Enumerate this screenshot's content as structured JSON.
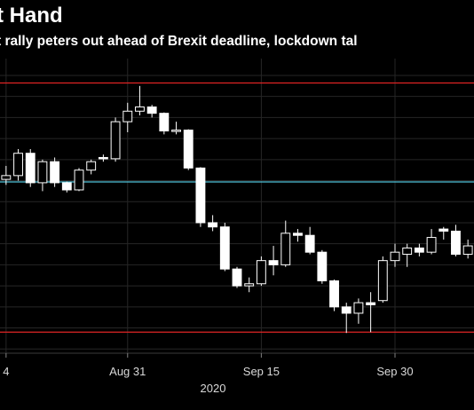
{
  "chart_data": {
    "type": "candlestick",
    "title": "t Hand",
    "subtitle": "t rally peters out ahead of Brexit deadline, lockdown tal",
    "x_tick_labels": [
      "4",
      "Aug 31",
      "Sep 15",
      "Sep 30"
    ],
    "x_tick_sessions": [
      0,
      10,
      21,
      32
    ],
    "year_label": "2020",
    "xlim": [
      -0.5,
      38.5
    ],
    "ylim": [
      1.284,
      1.354
    ],
    "grid": true,
    "horizontal_lines": [
      {
        "value": 1.3482,
        "color": "#e02424"
      },
      {
        "value": 1.3247,
        "color": "#4fc3d9"
      },
      {
        "value": 1.289,
        "color": "#e02424"
      }
    ],
    "candles": [
      {
        "o": 1.3253,
        "h": 1.3285,
        "l": 1.324,
        "c": 1.3262
      },
      {
        "o": 1.3262,
        "h": 1.3325,
        "l": 1.325,
        "c": 1.3315
      },
      {
        "o": 1.3315,
        "h": 1.3325,
        "l": 1.3235,
        "c": 1.3245
      },
      {
        "o": 1.3245,
        "h": 1.33,
        "l": 1.3225,
        "c": 1.3295
      },
      {
        "o": 1.3295,
        "h": 1.3305,
        "l": 1.3235,
        "c": 1.3245
      },
      {
        "o": 1.3245,
        "h": 1.3248,
        "l": 1.3222,
        "c": 1.3228
      },
      {
        "o": 1.3228,
        "h": 1.328,
        "l": 1.3225,
        "c": 1.3275
      },
      {
        "o": 1.3275,
        "h": 1.33,
        "l": 1.3265,
        "c": 1.3295
      },
      {
        "o": 1.3305,
        "h": 1.3312,
        "l": 1.3295,
        "c": 1.3302
      },
      {
        "o": 1.3302,
        "h": 1.34,
        "l": 1.3295,
        "c": 1.339
      },
      {
        "o": 1.339,
        "h": 1.3435,
        "l": 1.3365,
        "c": 1.3415
      },
      {
        "o": 1.3415,
        "h": 1.3475,
        "l": 1.3405,
        "c": 1.3425
      },
      {
        "o": 1.3425,
        "h": 1.343,
        "l": 1.34,
        "c": 1.341
      },
      {
        "o": 1.341,
        "h": 1.3412,
        "l": 1.336,
        "c": 1.3368
      },
      {
        "o": 1.3368,
        "h": 1.339,
        "l": 1.336,
        "c": 1.337
      },
      {
        "o": 1.337,
        "h": 1.3372,
        "l": 1.3275,
        "c": 1.328
      },
      {
        "o": 1.328,
        "h": 1.3282,
        "l": 1.314,
        "c": 1.315
      },
      {
        "o": 1.315,
        "h": 1.3168,
        "l": 1.313,
        "c": 1.314
      },
      {
        "o": 1.314,
        "h": 1.315,
        "l": 1.3035,
        "c": 1.304
      },
      {
        "o": 1.304,
        "h": 1.3045,
        "l": 1.2995,
        "c": 1.3
      },
      {
        "o": 1.3,
        "h": 1.302,
        "l": 1.2985,
        "c": 1.3005
      },
      {
        "o": 1.3005,
        "h": 1.307,
        "l": 1.3,
        "c": 1.306
      },
      {
        "o": 1.306,
        "h": 1.3095,
        "l": 1.3025,
        "c": 1.305
      },
      {
        "o": 1.305,
        "h": 1.3155,
        "l": 1.3045,
        "c": 1.3125
      },
      {
        "o": 1.3125,
        "h": 1.3135,
        "l": 1.3105,
        "c": 1.312
      },
      {
        "o": 1.312,
        "h": 1.314,
        "l": 1.3075,
        "c": 1.308
      },
      {
        "o": 1.308,
        "h": 1.3085,
        "l": 1.3005,
        "c": 1.3012
      },
      {
        "o": 1.3012,
        "h": 1.3015,
        "l": 1.294,
        "c": 1.295
      },
      {
        "o": 1.295,
        "h": 1.296,
        "l": 1.2888,
        "c": 1.2935
      },
      {
        "o": 1.2935,
        "h": 1.297,
        "l": 1.291,
        "c": 1.296
      },
      {
        "o": 1.296,
        "h": 1.2985,
        "l": 1.289,
        "c": 1.2955
      },
      {
        "o": 1.2965,
        "h": 1.307,
        "l": 1.296,
        "c": 1.306
      },
      {
        "o": 1.306,
        "h": 1.31,
        "l": 1.3045,
        "c": 1.308
      },
      {
        "o": 1.3075,
        "h": 1.31,
        "l": 1.3045,
        "c": 1.309
      },
      {
        "o": 1.309,
        "h": 1.31,
        "l": 1.307,
        "c": 1.308
      },
      {
        "o": 1.308,
        "h": 1.3135,
        "l": 1.3075,
        "c": 1.3115
      },
      {
        "o": 1.3135,
        "h": 1.314,
        "l": 1.311,
        "c": 1.313
      },
      {
        "o": 1.313,
        "h": 1.3145,
        "l": 1.307,
        "c": 1.3075
      },
      {
        "o": 1.3075,
        "h": 1.311,
        "l": 1.3065,
        "c": 1.3095
      }
    ]
  }
}
